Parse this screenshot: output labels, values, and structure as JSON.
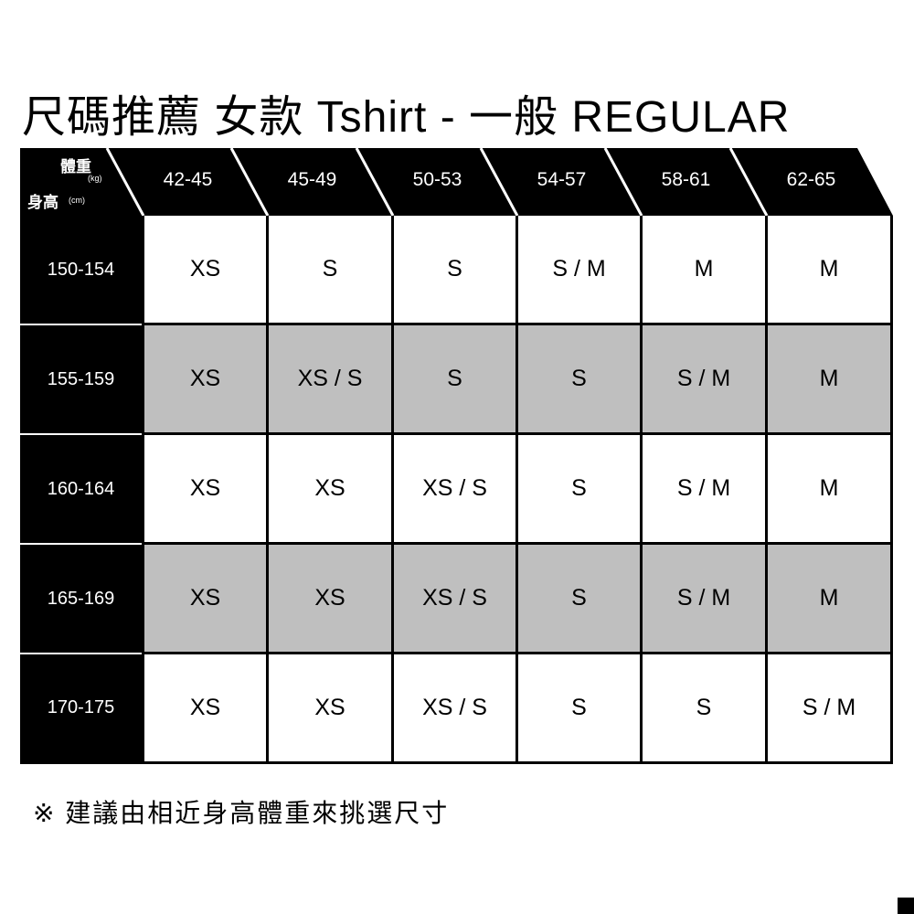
{
  "title": "尺碼推薦 女款 Tshirt - 一般 REGULAR",
  "corner": {
    "weight_label": "體重",
    "weight_unit": "(kg)",
    "height_label": "身高",
    "height_unit": "(cm)"
  },
  "columns": [
    "42-45",
    "45-49",
    "50-53",
    "54-57",
    "58-61",
    "62-65"
  ],
  "rows": [
    {
      "height": "150-154",
      "sizes": [
        "XS",
        "S",
        "S",
        "S / M",
        "M",
        "M"
      ]
    },
    {
      "height": "155-159",
      "sizes": [
        "XS",
        "XS / S",
        "S",
        "S",
        "S / M",
        "M"
      ]
    },
    {
      "height": "160-164",
      "sizes": [
        "XS",
        "XS",
        "XS / S",
        "S",
        "S / M",
        "M"
      ]
    },
    {
      "height": "165-169",
      "sizes": [
        "XS",
        "XS",
        "XS / S",
        "S",
        "S / M",
        "M"
      ]
    },
    {
      "height": "170-175",
      "sizes": [
        "XS",
        "XS",
        "XS / S",
        "S",
        "S",
        "S / M"
      ]
    }
  ],
  "note": "※ 建議由相近身高體重來挑選尺寸",
  "colors": {
    "header_bg": "#000000",
    "stripe": "#bfbfbf"
  }
}
